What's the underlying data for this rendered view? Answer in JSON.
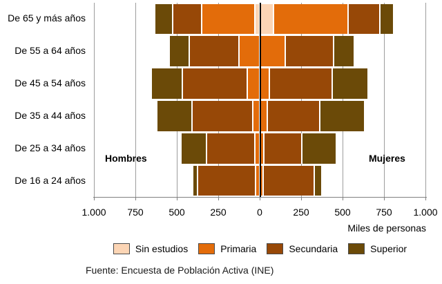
{
  "chart_data": {
    "type": "bar",
    "subtype": "population-pyramid-stacked-horizontal",
    "title": "",
    "xlabel": "Miles de personas",
    "left_group_label": "Hombres",
    "right_group_label": "Mujeres",
    "axis_max": 1000,
    "x_ticks": [
      "1.000",
      "750",
      "500",
      "250",
      "0",
      "250",
      "500",
      "750",
      "1.000"
    ],
    "grid": true,
    "legend_position": "bottom",
    "categories": [
      "De 65 y más años",
      "De 55 a 64 años",
      "De 45 a 54 años",
      "De 35 a 44 años",
      "De 25 a 34 años",
      "De 16 a 24 años"
    ],
    "series": [
      {
        "name": "Sin estudios",
        "color": "#FCD5B5",
        "hombres": [
          30,
          0,
          0,
          0,
          0,
          0
        ],
        "mujeres": [
          80,
          0,
          0,
          0,
          0,
          0
        ]
      },
      {
        "name": "Primaria",
        "color": "#E36C0A",
        "hombres": [
          320,
          125,
          75,
          40,
          30,
          25
        ],
        "mujeres": [
          450,
          150,
          55,
          40,
          20,
          15
        ]
      },
      {
        "name": "Secundaria",
        "color": "#974807",
        "hombres": [
          175,
          300,
          390,
          370,
          290,
          350
        ],
        "mujeres": [
          190,
          290,
          380,
          320,
          230,
          310
        ]
      },
      {
        "name": "Superior",
        "color": "#6B4A08",
        "hombres": [
          110,
          120,
          190,
          210,
          155,
          30
        ],
        "mujeres": [
          85,
          125,
          215,
          270,
          210,
          45
        ]
      }
    ]
  },
  "legend": {
    "items": [
      {
        "label": "Sin estudios",
        "color": "#FCD5B5"
      },
      {
        "label": "Primaria",
        "color": "#E36C0A"
      },
      {
        "label": "Secundaria",
        "color": "#974807"
      },
      {
        "label": "Superior",
        "color": "#6B4A08"
      }
    ]
  },
  "source_note": "Fuente: Encuesta de Población Activa (INE)"
}
